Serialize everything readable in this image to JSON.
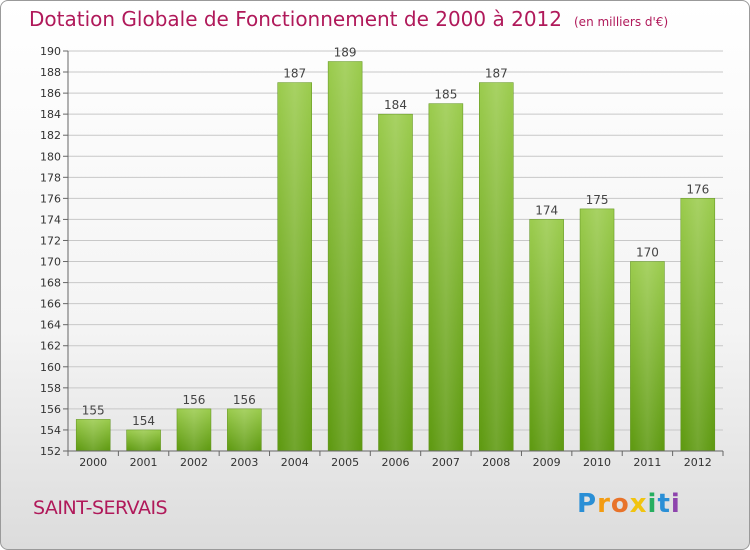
{
  "title": "Dotation Globale de Fonctionnement de 2000 à 2012",
  "subtitle": "(en milliers d'€)",
  "commune": "SAINT-SERVAIS",
  "logo": {
    "text": "Proxiti",
    "letters": [
      "P",
      "r",
      "o",
      "x",
      "i",
      "t",
      "i"
    ],
    "colors": [
      "#2a8fd6",
      "#f39c12",
      "#e8732a",
      "#f1c40f",
      "#27ae60",
      "#2a8fd6",
      "#8e44ad"
    ]
  },
  "chart_data": {
    "type": "bar",
    "title": "Dotation Globale de Fonctionnement de 2000 à 2012",
    "subtitle": "(en milliers d'€)",
    "xlabel": "",
    "ylabel": "",
    "categories": [
      "2000",
      "2001",
      "2002",
      "2003",
      "2004",
      "2005",
      "2006",
      "2007",
      "2008",
      "2009",
      "2010",
      "2011",
      "2012"
    ],
    "values": [
      155,
      154,
      156,
      156,
      187,
      189,
      184,
      185,
      187,
      174,
      175,
      170,
      176
    ],
    "ylim": [
      152,
      190
    ],
    "yticks": [
      152,
      154,
      156,
      158,
      160,
      162,
      164,
      166,
      168,
      170,
      172,
      174,
      176,
      178,
      180,
      182,
      184,
      186,
      188,
      190
    ],
    "grid": true,
    "bar_color": "#7ab83a",
    "data_labels": true
  }
}
